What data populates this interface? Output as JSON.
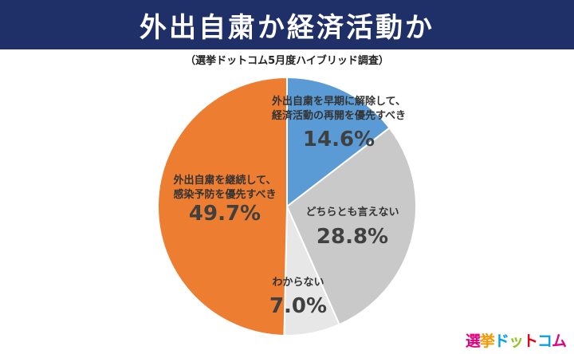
{
  "banner": {
    "title": "外出自粛か経済活動か"
  },
  "chart_data": {
    "type": "pie",
    "title": "外出自粛か経済活動か",
    "subtitle": "（選挙ドットコム5月度ハイブリッド調査）",
    "slices": [
      {
        "label_lines": [
          "外出自粛を早期に解除して、",
          "経済活動の再開を優先すべき"
        ],
        "value": 14.6,
        "value_label": "14.6%",
        "color": "#5b9bd5"
      },
      {
        "label_lines": [
          "どちらとも言えない"
        ],
        "value": 28.8,
        "value_label": "28.8%",
        "color": "#c9c9c9"
      },
      {
        "label_lines": [
          "わからない"
        ],
        "value": 7.0,
        "value_label": "7.0%",
        "color": "#e7e7e7"
      },
      {
        "label_lines": [
          "外出自粛を継続して、",
          "感染予防を優先すべき"
        ],
        "value": 49.7,
        "value_label": "49.7%",
        "color": "#ed7d31"
      }
    ]
  },
  "logo": {
    "text": "選挙ドットコム",
    "colors": [
      "#e6007e",
      "#f39800",
      "#00a0e9",
      "#8fc31f",
      "#e60012",
      "#00a0e9",
      "#e6007e"
    ]
  }
}
